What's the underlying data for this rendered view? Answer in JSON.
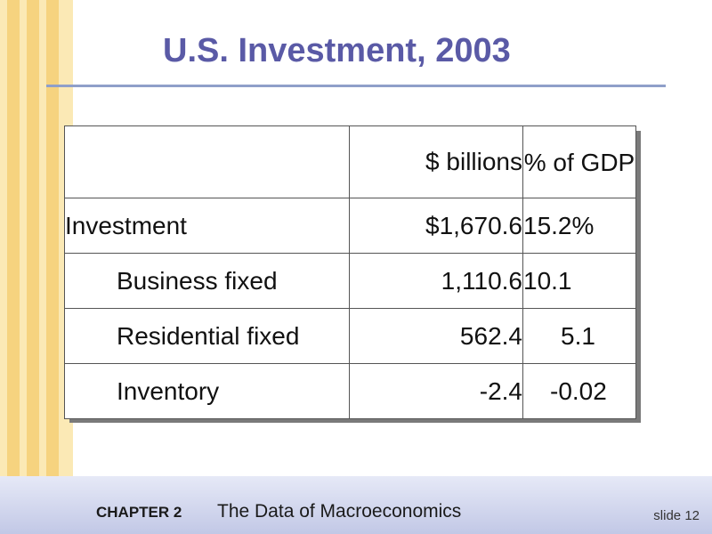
{
  "slide": {
    "title": "U.S. Investment, 2003"
  },
  "table": {
    "headers": [
      "",
      "$ billions",
      "% of GDP"
    ],
    "rows": [
      {
        "label": "Investment",
        "billions": "$1,670.6",
        "pct_gdp": "15.2%"
      },
      {
        "label": "Business fixed",
        "billions": "1,110.6",
        "pct_gdp": "10.1"
      },
      {
        "label": "Residential fixed",
        "billions": "562.4",
        "pct_gdp": "5.1"
      },
      {
        "label": "Inventory",
        "billions": "-2.4",
        "pct_gdp": "-0.02"
      }
    ]
  },
  "footer": {
    "chapter": "CHAPTER 2",
    "subtitle": "The Data of Macroeconomics",
    "slide_label": "slide 12"
  },
  "colors": {
    "title": "#5a5aa6",
    "stripe_light": "#fbe9b5",
    "stripe_dark": "#f6d37f",
    "footer": "#c2c8e6"
  }
}
